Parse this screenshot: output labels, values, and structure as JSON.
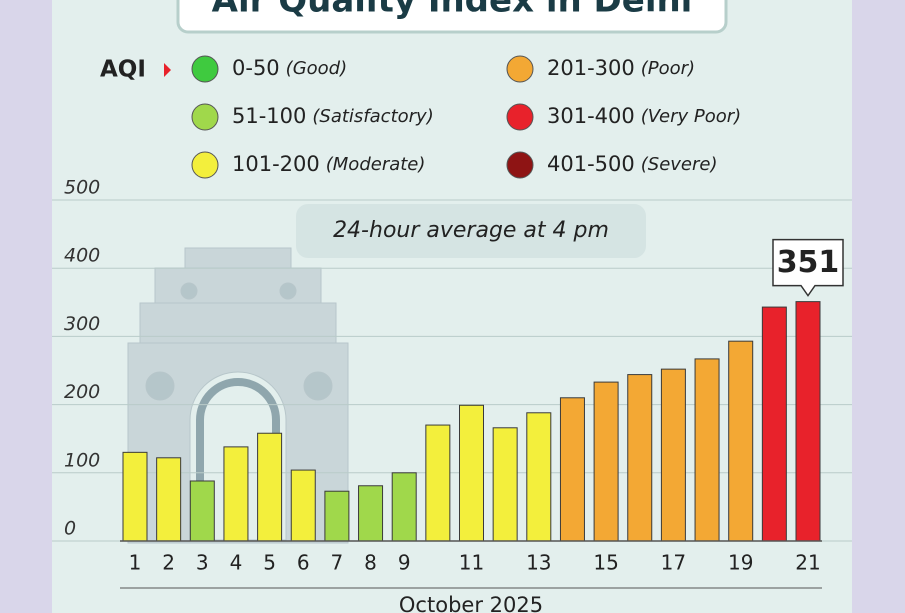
{
  "chart_data": {
    "type": "bar",
    "title": "Air Quality Index in Delhi",
    "legend_title": "AQI",
    "legend": [
      {
        "range": "0-50",
        "label": "(Good)",
        "color": "#3fca3f"
      },
      {
        "range": "51-100",
        "label": "(Satisfactory)",
        "color": "#a0d84b"
      },
      {
        "range": "101-200",
        "label": "(Moderate)",
        "color": "#f3ef3c"
      },
      {
        "range": "201-300",
        "label": "(Poor)",
        "color": "#f3a834"
      },
      {
        "range": "301-400",
        "label": "(Very Poor)",
        "color": "#e8222b"
      },
      {
        "range": "401-500",
        "label": "(Severe)",
        "color": "#8e1414"
      }
    ],
    "annotation": "24-hour average at 4 pm",
    "x_label": "October 2025",
    "categories": [
      "1",
      "2",
      "3",
      "4",
      "5",
      "6",
      "7",
      "8",
      "9",
      null,
      "11",
      null,
      "13",
      null,
      "15",
      null,
      "17",
      null,
      "19",
      null,
      "21"
    ],
    "values": [
      130,
      122,
      88,
      138,
      158,
      104,
      73,
      81,
      100,
      170,
      199,
      166,
      188,
      210,
      233,
      244,
      252,
      267,
      293,
      343,
      351
    ],
    "colors": [
      "#f3ef3c",
      "#f3ef3c",
      "#a0d84b",
      "#f3ef3c",
      "#f3ef3c",
      "#f3ef3c",
      "#a0d84b",
      "#a0d84b",
      "#a0d84b",
      "#f3ef3c",
      "#f3ef3c",
      "#f3ef3c",
      "#f3ef3c",
      "#f3a834",
      "#f3a834",
      "#f3a834",
      "#f3a834",
      "#f3a834",
      "#f3a834",
      "#e8222b",
      "#e8222b"
    ],
    "ylim": [
      0,
      500
    ],
    "yticks": [
      0,
      100,
      200,
      300,
      400,
      500
    ],
    "grid": true
  }
}
